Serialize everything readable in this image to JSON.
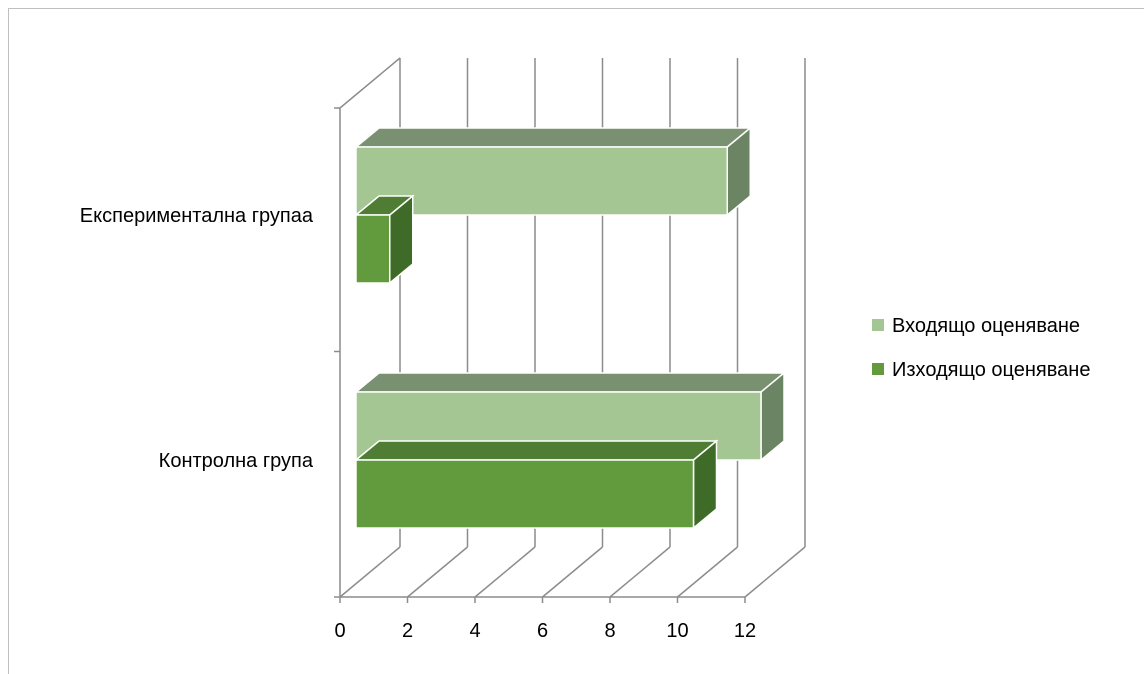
{
  "chart_data": {
    "type": "bar",
    "orientation": "horizontal",
    "style": "3d-clustered",
    "categories": [
      "Експериментална групаа",
      "Контролна група"
    ],
    "series": [
      {
        "name": "Входящо оценяване",
        "values": [
          11,
          12
        ],
        "color": "#a3c693",
        "top_color": "#7a9171",
        "side_color": "#6b8463"
      },
      {
        "name": "Изходящо оценяване",
        "values": [
          1,
          10
        ],
        "color": "#629a3e",
        "top_color": "#4f7d33",
        "side_color": "#3f6b28"
      }
    ],
    "xlim": [
      0,
      12
    ],
    "x_ticks": [
      "0",
      "2",
      "4",
      "6",
      "8",
      "10",
      "12"
    ],
    "grid": true,
    "legend_position": "right",
    "title": "",
    "xlabel": "",
    "ylabel": ""
  }
}
